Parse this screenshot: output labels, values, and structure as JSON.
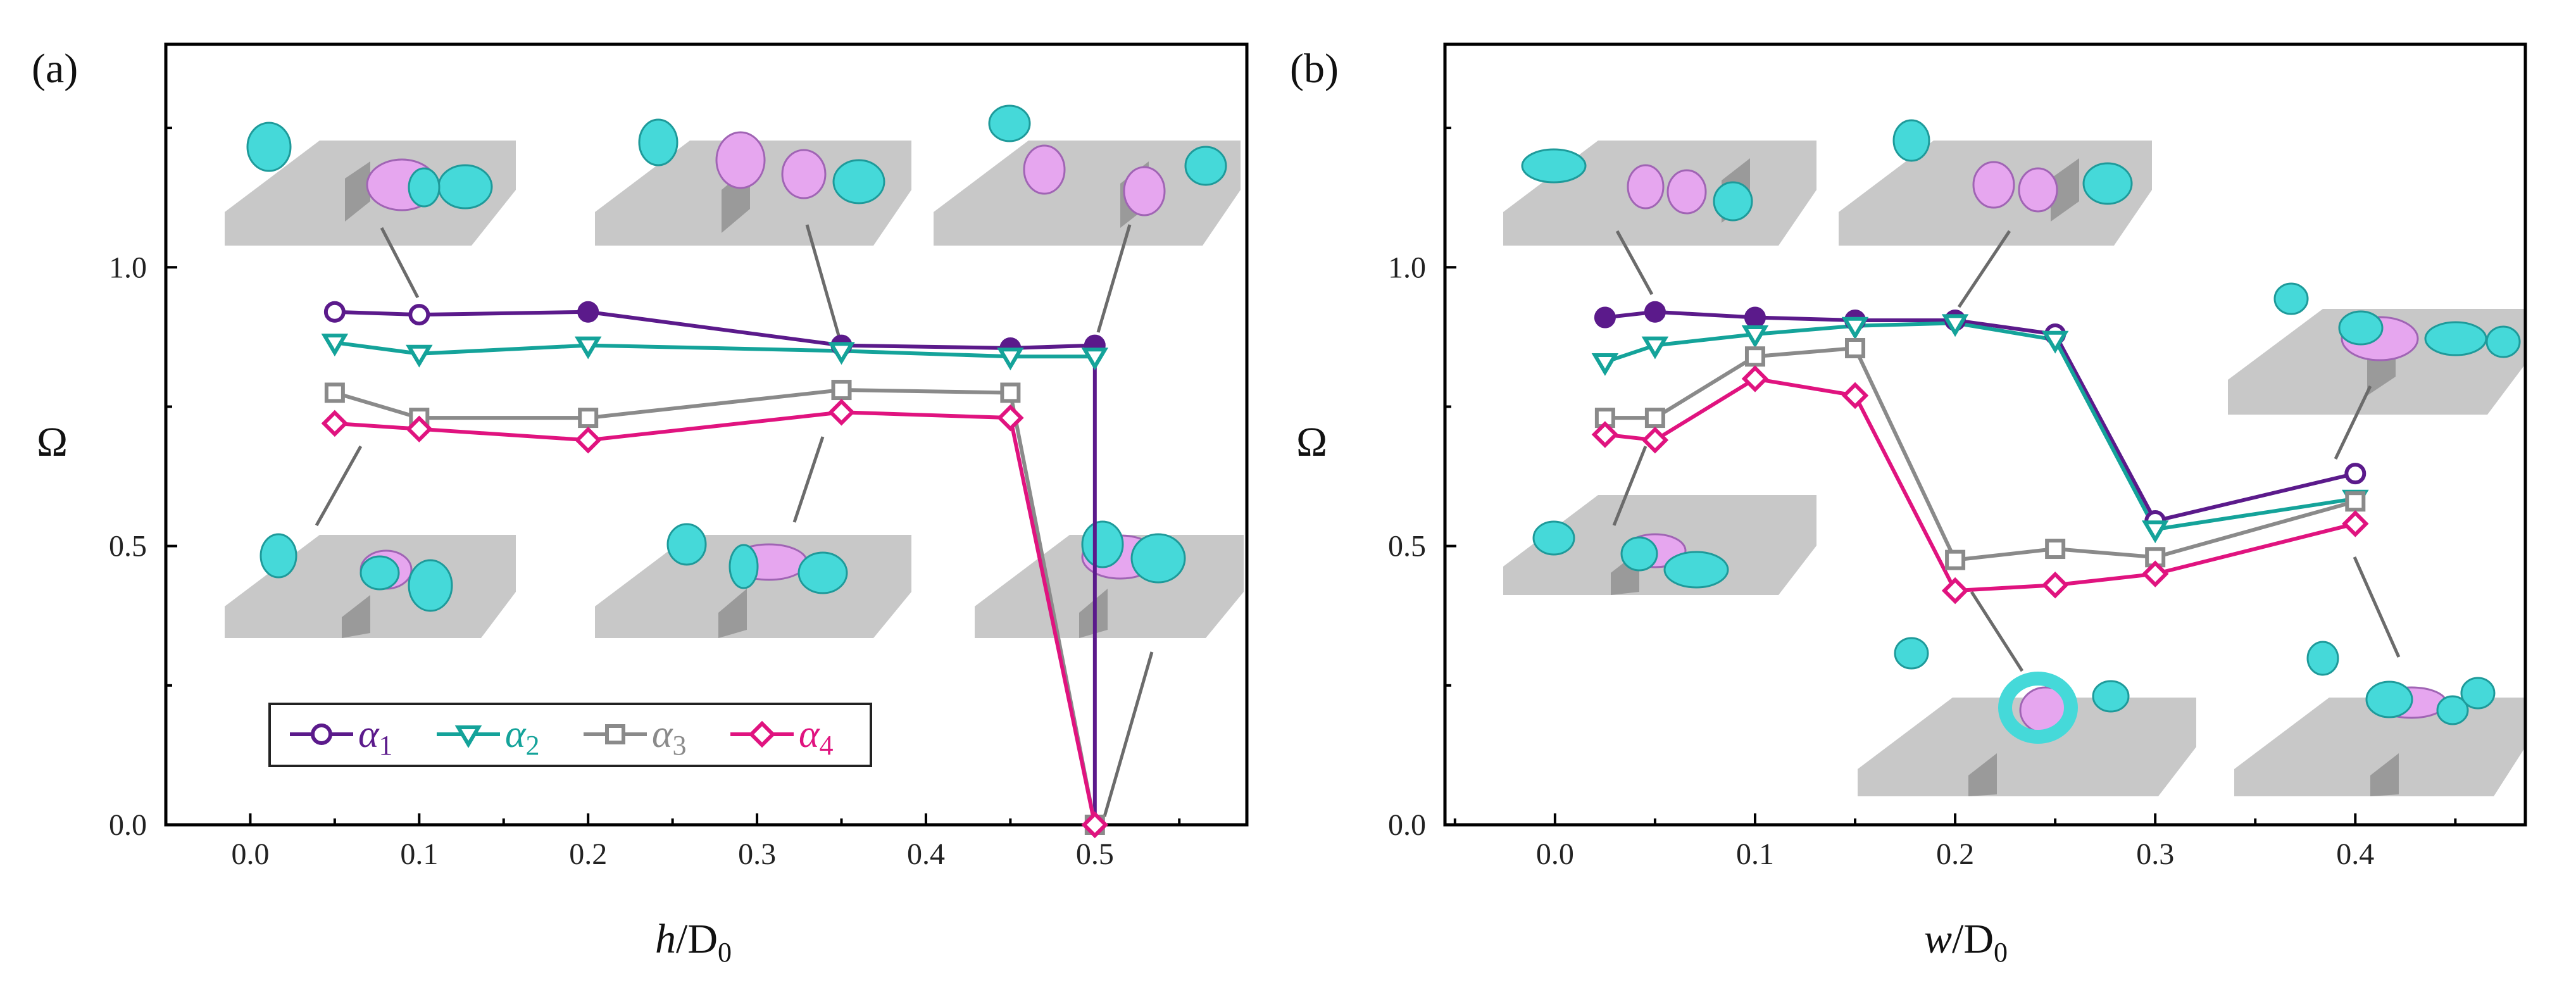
{
  "colors": {
    "alpha1": "#5b1a8b",
    "alpha2": "#14a39a",
    "alpha3": "#8a8a8a",
    "alpha4": "#e0137f",
    "leader": "#6b6b6b",
    "plate": "#c8c8c8",
    "cyan": "#45d9d9",
    "pink": "#e6a6ef"
  },
  "legend": [
    {
      "name": "α1",
      "symbol": "α",
      "sub": "1",
      "marker": "circle",
      "color_key": "alpha1"
    },
    {
      "name": "α2",
      "symbol": "α",
      "sub": "2",
      "marker": "tri_down",
      "color_key": "alpha2"
    },
    {
      "name": "α3",
      "symbol": "α",
      "sub": "3",
      "marker": "square",
      "color_key": "alpha3"
    },
    {
      "name": "α4",
      "symbol": "α",
      "sub": "4",
      "marker": "diamond",
      "color_key": "alpha4"
    }
  ],
  "chart_data": [
    {
      "panel_label": "(a)",
      "type": "line",
      "xlabel_italic": "h",
      "xlabel_rest": "/D",
      "xlabel_sub": "0",
      "ylabel": "Ω",
      "xlim": [
        -0.05,
        0.59
      ],
      "ylim": [
        0.0,
        1.4
      ],
      "xticks": [
        0.0,
        0.1,
        0.2,
        0.3,
        0.4,
        0.5
      ],
      "xtick_labels": [
        "0.0",
        "0.1",
        "0.2",
        "0.3",
        "0.4",
        "0.5"
      ],
      "yticks": [
        0.0,
        0.5,
        1.0
      ],
      "ytick_labels": [
        "0.0",
        "0.5",
        "1.0"
      ],
      "x": [
        0.05,
        0.1,
        0.2,
        0.35,
        0.45,
        0.5
      ],
      "series": [
        {
          "name": "α1",
          "color_key": "alpha1",
          "marker": "circle",
          "values": [
            0.92,
            0.915,
            0.92,
            0.86,
            0.855,
            0.86
          ],
          "filled": [
            false,
            false,
            true,
            true,
            true,
            true
          ],
          "end": [
            0.5,
            0.0
          ]
        },
        {
          "name": "α2",
          "color_key": "alpha2",
          "marker": "tri_down",
          "values": [
            0.865,
            0.845,
            0.86,
            0.85,
            0.84,
            0.84
          ],
          "filled": [
            false,
            false,
            false,
            false,
            false,
            false
          ]
        },
        {
          "name": "α3",
          "color_key": "alpha3",
          "marker": "square",
          "values": [
            0.775,
            0.73,
            0.73,
            0.78,
            0.775,
            0.0
          ],
          "filled": [
            false,
            false,
            false,
            false,
            false,
            false
          ]
        },
        {
          "name": "α4",
          "color_key": "alpha4",
          "marker": "diamond",
          "values": [
            0.72,
            0.71,
            0.69,
            0.74,
            0.73,
            0.0
          ],
          "filled": [
            false,
            false,
            false,
            false,
            false,
            false
          ]
        }
      ]
    },
    {
      "panel_label": "(b)",
      "type": "line",
      "xlabel_italic": "w",
      "xlabel_rest": "/D",
      "xlabel_sub": "0",
      "ylabel": "Ω",
      "xlim": [
        -0.055,
        0.485
      ],
      "ylim": [
        0.0,
        1.4
      ],
      "xticks": [
        0.0,
        0.1,
        0.2,
        0.3,
        0.4
      ],
      "xtick_labels": [
        "0.0",
        "0.1",
        "0.2",
        "0.3",
        "0.4"
      ],
      "yticks": [
        0.0,
        0.5,
        1.0
      ],
      "ytick_labels": [
        "0.0",
        "0.5",
        "1.0"
      ],
      "x": [
        0.025,
        0.05,
        0.1,
        0.15,
        0.2,
        0.25,
        0.3,
        0.4
      ],
      "series": [
        {
          "name": "α1",
          "color_key": "alpha1",
          "marker": "circle",
          "values": [
            0.91,
            0.92,
            0.91,
            0.905,
            0.905,
            0.88,
            0.545,
            0.63
          ],
          "filled": [
            true,
            true,
            true,
            true,
            true,
            false,
            false,
            false
          ]
        },
        {
          "name": "α2",
          "color_key": "alpha2",
          "marker": "tri_down",
          "values": [
            0.83,
            0.86,
            0.88,
            0.895,
            0.9,
            0.87,
            0.53,
            0.585
          ],
          "filled": [
            false,
            false,
            false,
            false,
            false,
            false,
            false,
            false
          ]
        },
        {
          "name": "α3",
          "color_key": "alpha3",
          "marker": "square",
          "values": [
            0.73,
            0.73,
            0.84,
            0.855,
            0.475,
            0.495,
            0.48,
            0.58
          ],
          "filled": [
            false,
            false,
            false,
            false,
            false,
            false,
            false,
            false
          ]
        },
        {
          "name": "α4",
          "color_key": "alpha4",
          "marker": "diamond",
          "values": [
            0.7,
            0.69,
            0.8,
            0.77,
            0.42,
            0.43,
            0.45,
            0.54
          ],
          "filled": [
            false,
            false,
            false,
            false,
            false,
            false,
            false,
            false
          ]
        }
      ]
    }
  ]
}
